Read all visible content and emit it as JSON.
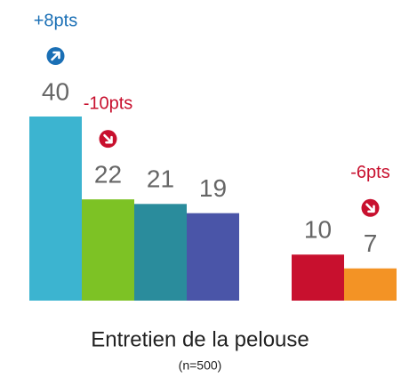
{
  "chart_data": {
    "type": "bar",
    "title": "Entretien de la pelouse",
    "subtitle": "(n=500)",
    "categories": [
      null,
      null,
      null,
      null,
      null,
      null
    ],
    "values": [
      40,
      22,
      21,
      19,
      10,
      7
    ],
    "colors": [
      "#3cb4d0",
      "#7dc225",
      "#2a8c9c",
      "#4a55a8",
      "#c8102e",
      "#f39325"
    ],
    "change_labels": [
      "+8pts",
      "-10pts",
      null,
      null,
      null,
      "-6pts"
    ]
  }
}
